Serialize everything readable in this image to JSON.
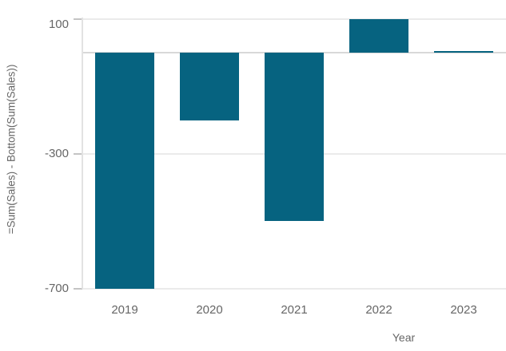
{
  "chart_data": {
    "type": "bar",
    "title": "",
    "xlabel": "Year",
    "ylabel": "=Sum(Sales) - Bottom(Sum(Sales))",
    "categories": [
      "2019",
      "2020",
      "2021",
      "2022",
      "2023"
    ],
    "values": [
      -700,
      -200,
      -500,
      100,
      0
    ],
    "yticks": [
      100,
      -300,
      -700
    ],
    "ylim": [
      -700,
      104
    ],
    "legend_position": "none",
    "grid_on": true,
    "bar_color": "#066380",
    "grid_color": "#ebebeb",
    "zero_line_color": "#d8d8d8",
    "axis_line_color": "#e2e2e2",
    "tick_mark_color": "#c4c4c4",
    "label_color": "#666666"
  }
}
